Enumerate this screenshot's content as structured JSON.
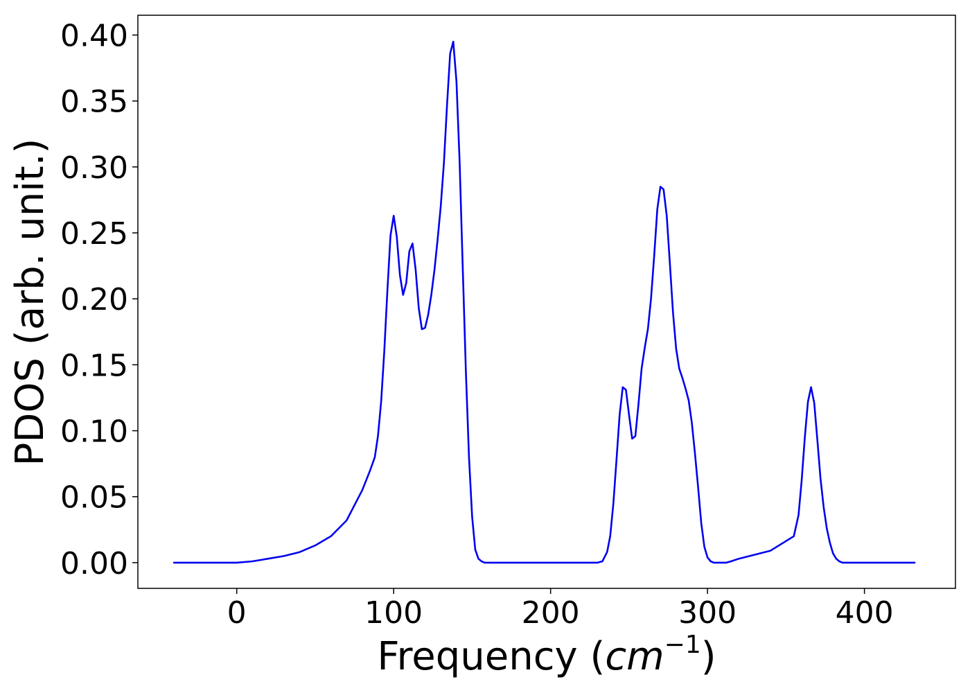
{
  "chart_data": {
    "type": "line",
    "xlabel": "Frequency (",
    "xlabel_math": "cm",
    "xlabel_exp": "−1",
    "xlabel_close": ")",
    "ylabel": "PDOS (arb. unit.)",
    "xlim": [
      -63,
      458
    ],
    "ylim": [
      -0.0195,
      0.415
    ],
    "xticks": [
      0,
      100,
      200,
      300,
      400
    ],
    "yticks": [
      0.0,
      0.05,
      0.1,
      0.15,
      0.2,
      0.25,
      0.3,
      0.35,
      0.4
    ],
    "xtick_labels": [
      "0",
      "100",
      "200",
      "300",
      "400"
    ],
    "ytick_labels": [
      "0.00",
      "0.05",
      "0.10",
      "0.15",
      "0.20",
      "0.25",
      "0.30",
      "0.35",
      "0.40"
    ],
    "grid": false,
    "series": [
      {
        "color": "#0000ee",
        "x": [
          -40,
          0,
          10,
          20,
          30,
          40,
          50,
          60,
          70,
          80,
          85,
          88,
          90,
          92,
          94,
          96,
          98,
          100,
          102,
          104,
          106,
          108,
          110,
          112,
          114,
          116,
          118,
          120,
          122,
          124,
          126,
          128,
          130,
          132,
          134,
          136,
          138,
          140,
          142,
          144,
          146,
          148,
          150,
          152,
          154,
          156,
          158,
          160,
          162,
          164,
          166,
          168,
          170,
          180,
          200,
          220,
          230,
          233,
          236,
          238,
          240,
          242,
          244,
          246,
          248,
          250,
          252,
          254,
          256,
          258,
          260,
          262,
          264,
          266,
          268,
          270,
          272,
          274,
          276,
          278,
          280,
          282,
          284,
          286,
          288,
          290,
          292,
          294,
          296,
          298,
          300,
          302,
          304,
          306,
          308,
          310,
          312,
          315,
          320,
          340,
          355,
          358,
          360,
          362,
          364,
          366,
          368,
          370,
          372,
          374,
          376,
          378,
          380,
          382,
          384,
          386,
          388,
          390,
          392,
          394,
          396,
          398,
          400,
          402,
          405,
          410,
          432
        ],
        "y": [
          0.0,
          0.0,
          0.001,
          0.003,
          0.005,
          0.008,
          0.013,
          0.02,
          0.032,
          0.055,
          0.07,
          0.08,
          0.096,
          0.122,
          0.16,
          0.206,
          0.248,
          0.263,
          0.247,
          0.218,
          0.203,
          0.212,
          0.236,
          0.242,
          0.222,
          0.193,
          0.177,
          0.178,
          0.188,
          0.203,
          0.222,
          0.245,
          0.27,
          0.303,
          0.347,
          0.386,
          0.395,
          0.365,
          0.305,
          0.225,
          0.145,
          0.08,
          0.035,
          0.01,
          0.003,
          0.001,
          0.0,
          0.0,
          0.0,
          0.0,
          0.0,
          0.0,
          0.0,
          0.0,
          0.0,
          0.0,
          0.0,
          0.001,
          0.008,
          0.02,
          0.045,
          0.078,
          0.112,
          0.133,
          0.131,
          0.112,
          0.094,
          0.096,
          0.12,
          0.147,
          0.163,
          0.177,
          0.2,
          0.232,
          0.268,
          0.285,
          0.283,
          0.263,
          0.227,
          0.19,
          0.162,
          0.147,
          0.14,
          0.132,
          0.123,
          0.106,
          0.083,
          0.057,
          0.03,
          0.012,
          0.004,
          0.001,
          0.0,
          0.0,
          0.0,
          0.0,
          0.0,
          0.001,
          0.003,
          0.009,
          0.02,
          0.036,
          0.062,
          0.095,
          0.122,
          0.133,
          0.121,
          0.093,
          0.064,
          0.042,
          0.026,
          0.015,
          0.007,
          0.003,
          0.001,
          0.0,
          0.0,
          0.0,
          0.0,
          0.0,
          0.0,
          0.0,
          0.0,
          0.0,
          0.0,
          0.0,
          0.0
        ]
      }
    ]
  }
}
